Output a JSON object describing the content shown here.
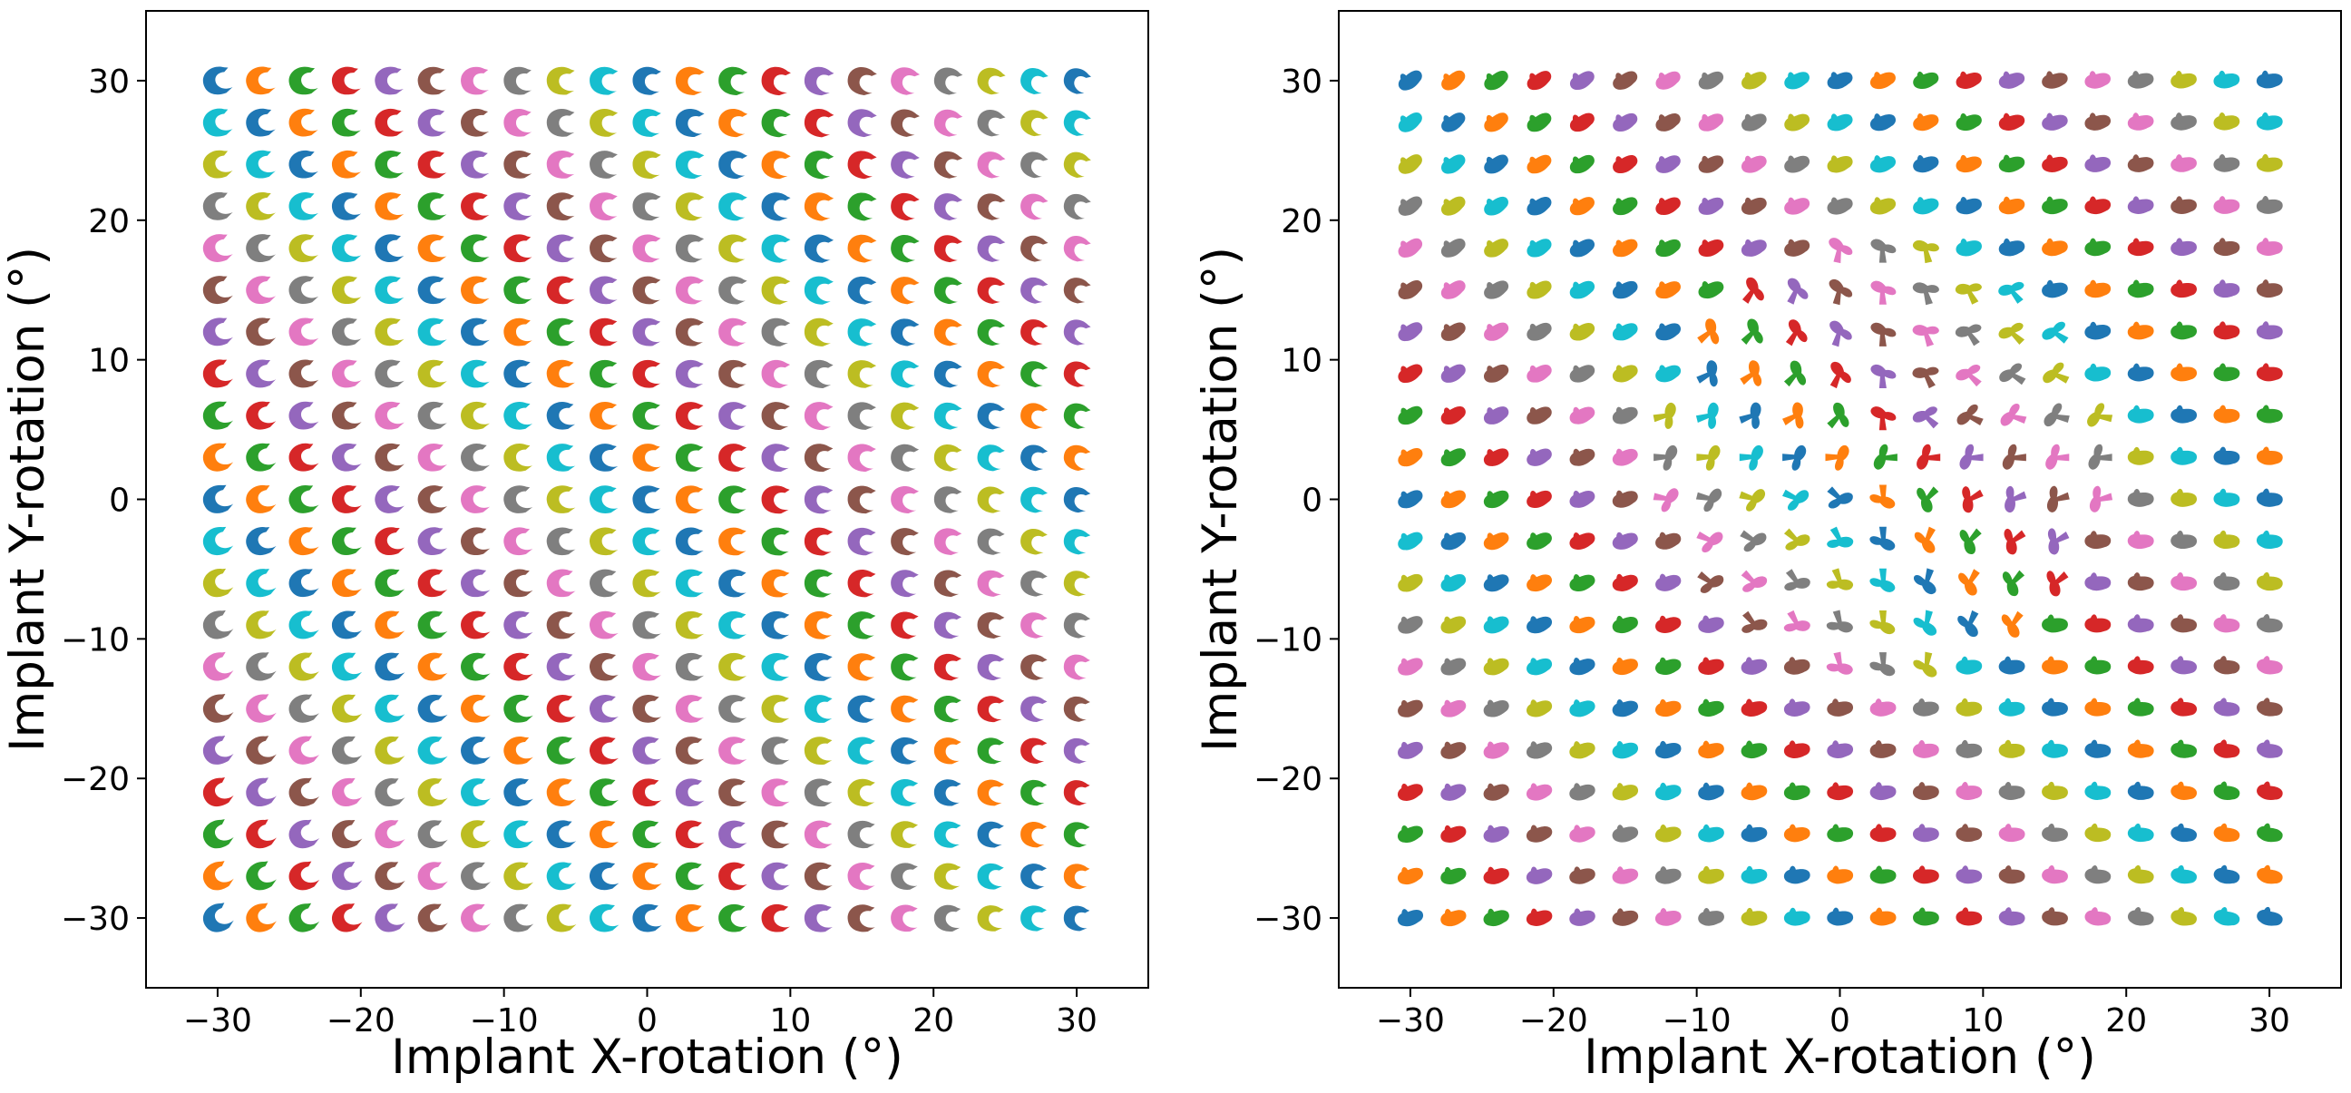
{
  "chart_data": [
    {
      "type": "scatter",
      "panel": "left",
      "marker": "projected implant silhouette (side view)",
      "xlabel": "Implant X-rotation (°)",
      "ylabel": "Implant Y-rotation (°)",
      "xlim": [
        -35,
        35
      ],
      "ylim": [
        -35,
        35
      ],
      "xticks": [
        -30,
        -20,
        -10,
        0,
        10,
        20,
        30
      ],
      "yticks": [
        -30,
        -20,
        -10,
        0,
        10,
        20,
        30
      ],
      "xtick_labels": [
        "−30",
        "−20",
        "−10",
        "0",
        "10",
        "20",
        "30"
      ],
      "ytick_labels": [
        "−30",
        "−20",
        "−10",
        "0",
        "10",
        "20",
        "30"
      ],
      "grid": false,
      "legend": "none",
      "x_values": [
        -30,
        -27,
        -24,
        -21,
        -18,
        -15,
        -12,
        -9,
        -6,
        -3,
        0,
        3,
        6,
        9,
        12,
        15,
        18,
        21,
        24,
        27,
        30
      ],
      "y_values": [
        -30,
        -27,
        -24,
        -21,
        -18,
        -15,
        -12,
        -9,
        -6,
        -3,
        0,
        3,
        6,
        9,
        12,
        15,
        18,
        21,
        24,
        27,
        30
      ],
      "point_count": 441
    },
    {
      "type": "scatter",
      "panel": "right",
      "marker": "projected implant silhouette (top view)",
      "xlabel": "Implant X-rotation (°)",
      "ylabel": "Implant Y-rotation (°)",
      "xlim": [
        -35,
        35
      ],
      "ylim": [
        -35,
        35
      ],
      "xticks": [
        -30,
        -20,
        -10,
        0,
        10,
        20,
        30
      ],
      "yticks": [
        -30,
        -20,
        -10,
        0,
        10,
        20,
        30
      ],
      "xtick_labels": [
        "−30",
        "−20",
        "−10",
        "0",
        "10",
        "20",
        "30"
      ],
      "ytick_labels": [
        "−30",
        "−20",
        "−10",
        "0",
        "10",
        "20",
        "30"
      ],
      "grid": false,
      "legend": "none",
      "x_values": [
        -30,
        -27,
        -24,
        -21,
        -18,
        -15,
        -12,
        -9,
        -6,
        -3,
        0,
        3,
        6,
        9,
        12,
        15,
        18,
        21,
        24,
        27,
        30
      ],
      "y_values": [
        -30,
        -27,
        -24,
        -21,
        -18,
        -15,
        -12,
        -9,
        -6,
        -3,
        0,
        3,
        6,
        9,
        12,
        15,
        18,
        21,
        24,
        27,
        30
      ],
      "point_count": 441
    }
  ],
  "colors": {
    "palette": [
      "#1f77b4",
      "#ff7f0e",
      "#2ca02c",
      "#d62728",
      "#9467bd",
      "#8c564b",
      "#e377c2",
      "#7f7f7f",
      "#bcbd22",
      "#17becf"
    ],
    "axes": "#000000",
    "background": "#ffffff"
  }
}
